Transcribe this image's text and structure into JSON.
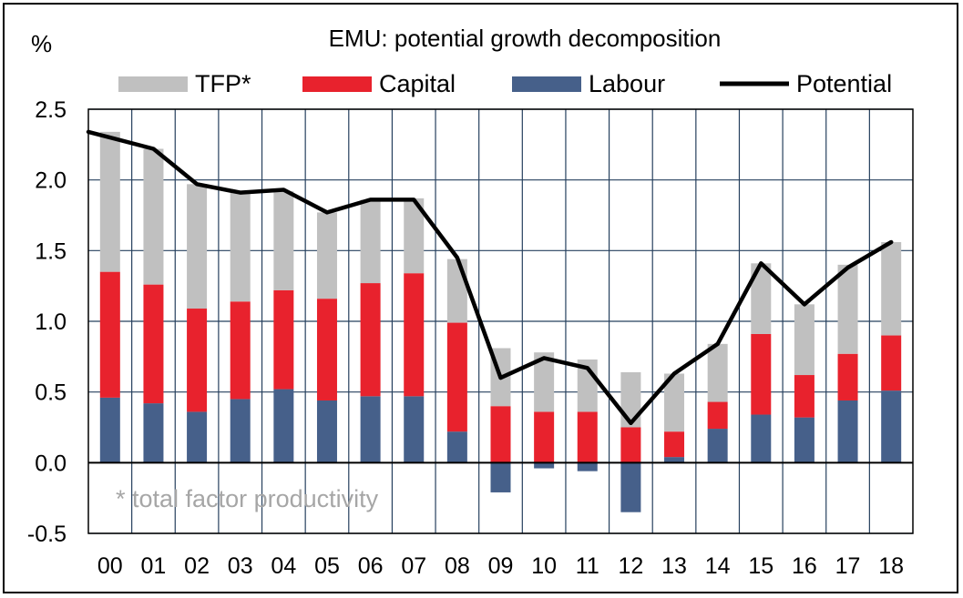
{
  "chart_data": {
    "type": "bar",
    "stacked": true,
    "title": "EMU: potential growth decomposition",
    "ylabel": "%",
    "xlabel": "",
    "ylim": [
      -0.5,
      2.5
    ],
    "yticks": [
      "-0.5",
      "0.0",
      "0.5",
      "1.0",
      "1.5",
      "2.0",
      "2.5"
    ],
    "grid": true,
    "legend_position": "top",
    "categories": [
      "00",
      "01",
      "02",
      "03",
      "04",
      "05",
      "06",
      "07",
      "08",
      "09",
      "10",
      "11",
      "12",
      "13",
      "14",
      "15",
      "16",
      "17",
      "18"
    ],
    "series": [
      {
        "name": "TFP*",
        "kind": "bar",
        "color": "#c0c0c0",
        "values": [
          0.99,
          0.96,
          0.88,
          0.77,
          0.7,
          0.61,
          0.59,
          0.53,
          0.45,
          0.41,
          0.42,
          0.37,
          0.39,
          0.41,
          0.41,
          0.5,
          0.5,
          0.63,
          0.66
        ]
      },
      {
        "name": "Capital",
        "kind": "bar",
        "color": "#e8222d",
        "values": [
          0.89,
          0.84,
          0.73,
          0.69,
          0.7,
          0.72,
          0.8,
          0.87,
          0.77,
          0.4,
          0.36,
          0.36,
          0.25,
          0.18,
          0.19,
          0.57,
          0.3,
          0.33,
          0.39
        ]
      },
      {
        "name": "Labour",
        "kind": "bar",
        "color": "#46608a",
        "values": [
          0.46,
          0.42,
          0.36,
          0.45,
          0.52,
          0.44,
          0.47,
          0.47,
          0.22,
          -0.21,
          -0.04,
          -0.06,
          -0.35,
          0.04,
          0.24,
          0.34,
          0.32,
          0.44,
          0.51
        ]
      },
      {
        "name": "Potential",
        "kind": "line",
        "color": "#000000",
        "values": [
          2.34,
          2.22,
          1.97,
          1.91,
          1.93,
          1.77,
          1.86,
          1.86,
          1.45,
          0.6,
          0.74,
          0.67,
          0.28,
          0.63,
          0.84,
          1.41,
          1.12,
          1.38,
          1.56
        ]
      }
    ],
    "annotation": "* total factor productivity"
  }
}
